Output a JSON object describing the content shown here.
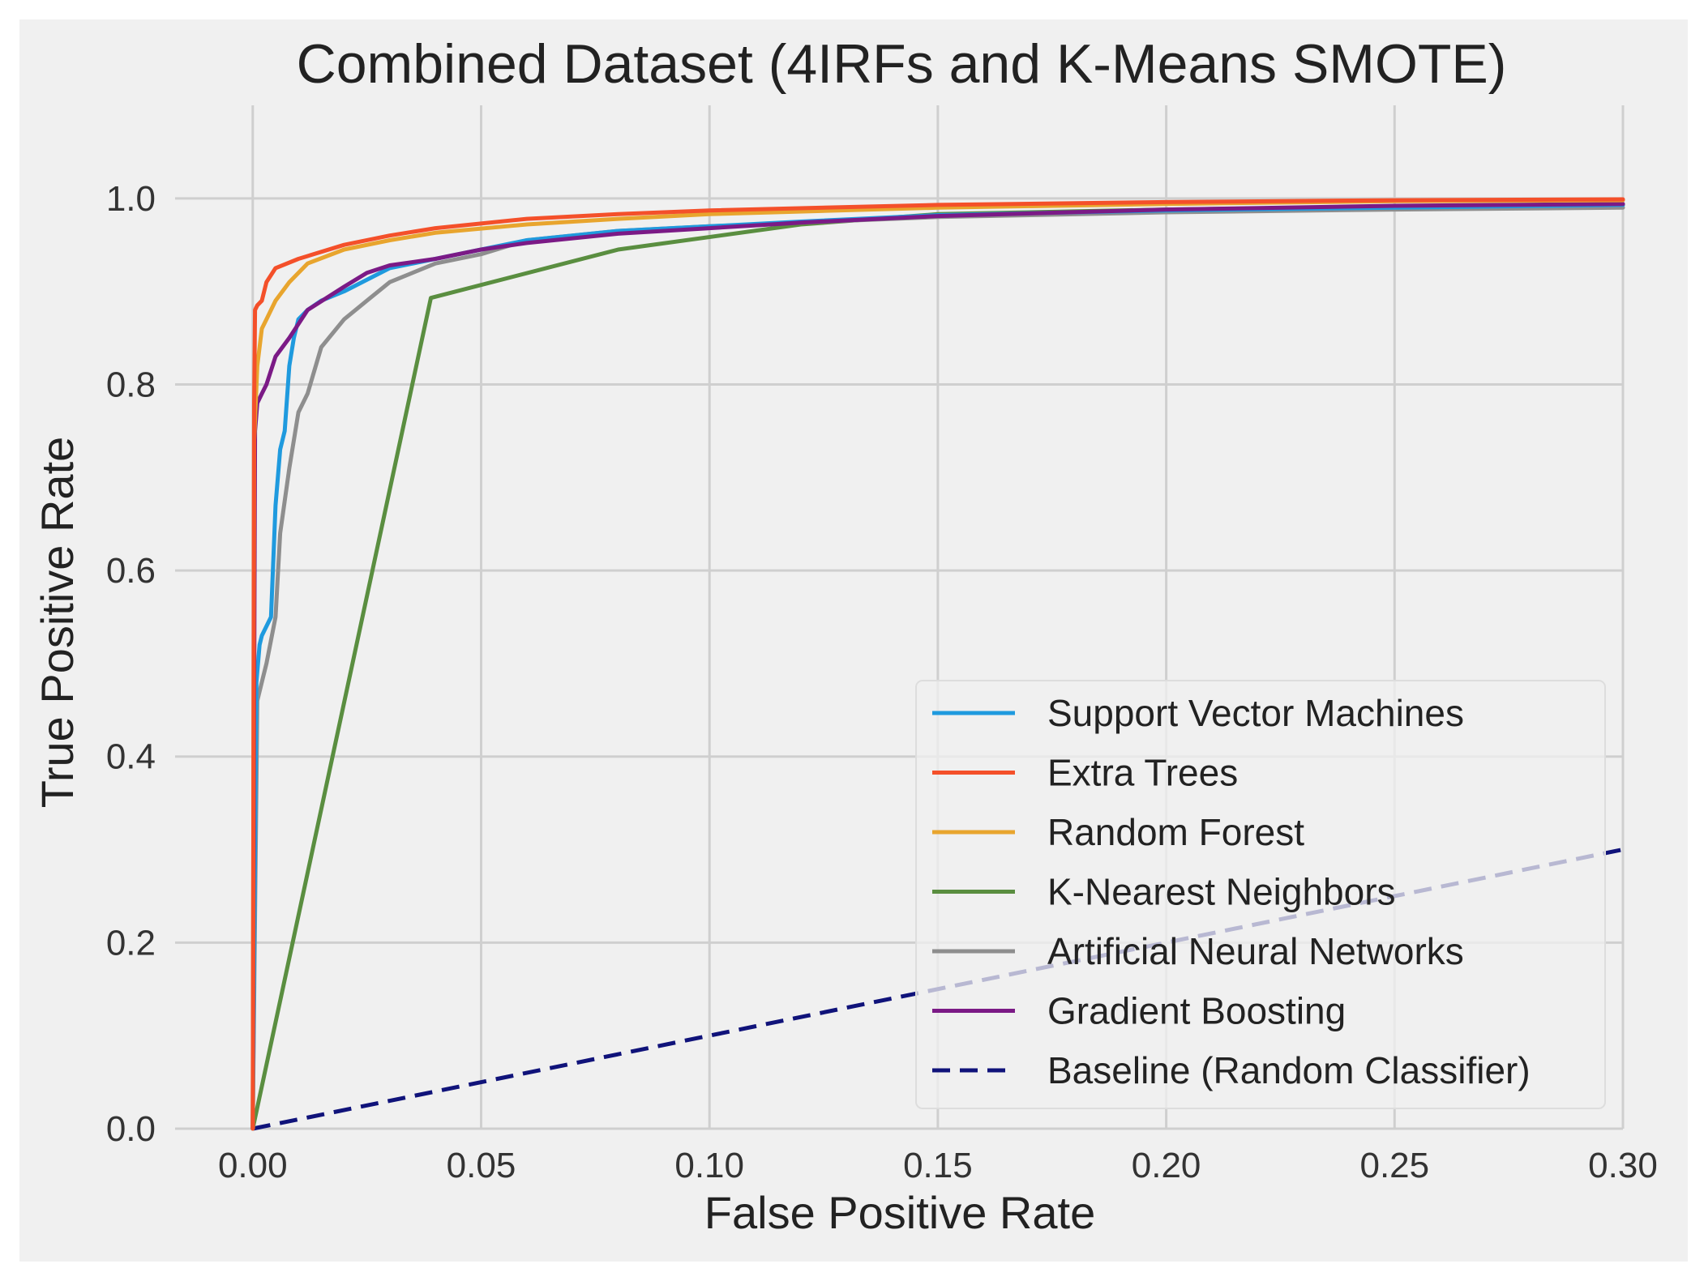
{
  "chart_data": {
    "type": "line",
    "title": "Combined Dataset (4IRFs and K-Means SMOTE)",
    "xlabel": "False Positive Rate",
    "ylabel": "True Positive Rate",
    "xlim": [
      -0.017,
      0.3
    ],
    "ylim": [
      0.0,
      1.1
    ],
    "xticks": [
      0.0,
      0.05,
      0.1,
      0.15,
      0.2,
      0.25,
      0.3
    ],
    "xtick_labels": [
      "0.00",
      "0.05",
      "0.10",
      "0.15",
      "0.20",
      "0.25",
      "0.30"
    ],
    "yticks": [
      0.0,
      0.2,
      0.4,
      0.6,
      0.8,
      1.0
    ],
    "ytick_labels": [
      "0.0",
      "0.2",
      "0.4",
      "0.6",
      "0.8",
      "1.0"
    ],
    "grid": true,
    "legend_position": "lower-right",
    "series": [
      {
        "name": "Support Vector Machines",
        "color": "#1f9ade",
        "dashed": false,
        "x": [
          0,
          0.0008,
          0.0015,
          0.002,
          0.004,
          0.005,
          0.006,
          0.007,
          0.008,
          0.009,
          0.01,
          0.012,
          0.015,
          0.02,
          0.03,
          0.04,
          0.05,
          0.06,
          0.08,
          0.1,
          0.12,
          0.15,
          0.2,
          0.25,
          0.3
        ],
        "y": [
          0,
          0.48,
          0.52,
          0.53,
          0.55,
          0.67,
          0.73,
          0.75,
          0.82,
          0.85,
          0.87,
          0.88,
          0.89,
          0.9,
          0.925,
          0.935,
          0.945,
          0.955,
          0.965,
          0.97,
          0.975,
          0.982,
          0.987,
          0.99,
          0.993
        ]
      },
      {
        "name": "Extra Trees",
        "color": "#f4502a",
        "dashed": false,
        "x": [
          0,
          0.0003,
          0.0005,
          0.001,
          0.002,
          0.003,
          0.005,
          0.01,
          0.02,
          0.03,
          0.04,
          0.06,
          0.08,
          0.1,
          0.15,
          0.2,
          0.25,
          0.3
        ],
        "y": [
          0,
          0.78,
          0.88,
          0.885,
          0.89,
          0.91,
          0.925,
          0.935,
          0.95,
          0.96,
          0.968,
          0.978,
          0.983,
          0.987,
          0.993,
          0.996,
          0.998,
          0.999
        ]
      },
      {
        "name": "Random Forest",
        "color": "#e8a52e",
        "dashed": false,
        "x": [
          0,
          0.0003,
          0.001,
          0.002,
          0.003,
          0.005,
          0.008,
          0.012,
          0.02,
          0.03,
          0.04,
          0.06,
          0.08,
          0.1,
          0.15,
          0.2,
          0.25,
          0.3
        ],
        "y": [
          0,
          0.74,
          0.82,
          0.86,
          0.87,
          0.89,
          0.91,
          0.93,
          0.945,
          0.955,
          0.963,
          0.972,
          0.978,
          0.983,
          0.99,
          0.994,
          0.997,
          0.998
        ]
      },
      {
        "name": "K-Nearest Neighbors",
        "color": "#5a8e40",
        "dashed": false,
        "x": [
          0,
          0.039,
          0.08,
          0.12,
          0.15,
          0.2,
          0.25,
          0.3
        ],
        "y": [
          0,
          0.893,
          0.945,
          0.972,
          0.983,
          0.988,
          0.991,
          0.993
        ]
      },
      {
        "name": "Artificial Neural Networks",
        "color": "#8e8e8e",
        "dashed": false,
        "x": [
          0,
          0.001,
          0.002,
          0.003,
          0.005,
          0.006,
          0.008,
          0.01,
          0.012,
          0.015,
          0.02,
          0.025,
          0.03,
          0.04,
          0.05,
          0.06,
          0.08,
          0.1,
          0.15,
          0.2,
          0.25,
          0.3
        ],
        "y": [
          0,
          0.46,
          0.48,
          0.5,
          0.55,
          0.64,
          0.71,
          0.77,
          0.79,
          0.84,
          0.87,
          0.89,
          0.91,
          0.93,
          0.94,
          0.955,
          0.965,
          0.97,
          0.98,
          0.985,
          0.988,
          0.99
        ]
      },
      {
        "name": "Gradient Boosting",
        "color": "#7b1a86",
        "dashed": false,
        "x": [
          0,
          0.0005,
          0.001,
          0.002,
          0.003,
          0.005,
          0.008,
          0.012,
          0.02,
          0.025,
          0.03,
          0.04,
          0.05,
          0.06,
          0.08,
          0.1,
          0.12,
          0.15,
          0.2,
          0.25,
          0.3
        ],
        "y": [
          0,
          0.75,
          0.78,
          0.79,
          0.8,
          0.83,
          0.85,
          0.88,
          0.905,
          0.92,
          0.928,
          0.935,
          0.945,
          0.952,
          0.962,
          0.968,
          0.974,
          0.981,
          0.988,
          0.992,
          0.994
        ]
      },
      {
        "name": "Baseline (Random Classifier)",
        "color": "#10137a",
        "dashed": true,
        "x": [
          0,
          0.3
        ],
        "y": [
          0,
          0.3
        ]
      }
    ]
  }
}
